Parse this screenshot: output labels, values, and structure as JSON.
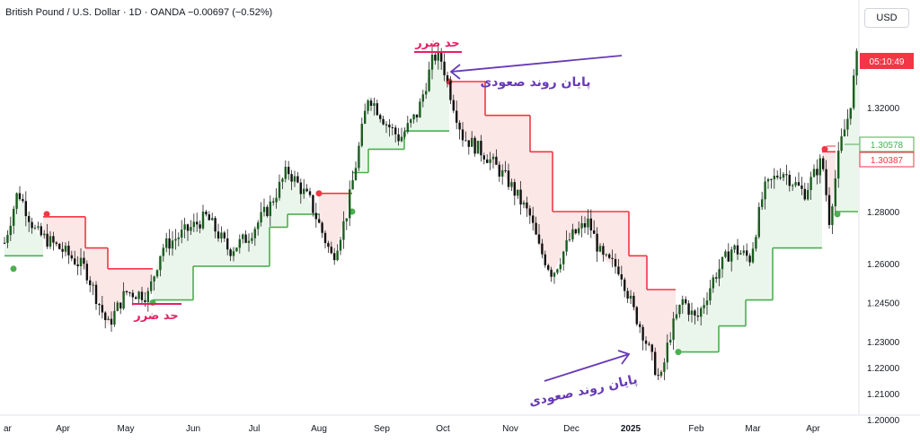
{
  "header": {
    "symbol": "British Pound / U.S. Dollar · 1D · OANDA",
    "change": "−0.00697 (−0.52%)"
  },
  "currency": "USD",
  "chart_data": {
    "type": "candlestick",
    "y_axis": {
      "ticks": [
        "1.32000",
        "1.28000",
        "1.26000",
        "1.24500",
        "1.23000",
        "1.22000",
        "1.21000",
        "1.20000"
      ],
      "tick_values": [
        1.32,
        1.28,
        1.26,
        1.245,
        1.23,
        1.22,
        1.21,
        1.2
      ],
      "position": "right"
    },
    "x_axis": {
      "ticks": [
        "ar",
        "Apr",
        "May",
        "Jun",
        "Jul",
        "Aug",
        "Sep",
        "Oct",
        "Nov",
        "Dec",
        "2025",
        "Feb",
        "Mar",
        "Apr"
      ]
    },
    "price_labels": [
      {
        "text": "05:10:49",
        "value": 1.343,
        "color": "#f23645"
      },
      {
        "text": "1.30578",
        "value": 1.30578,
        "color": "#4caf50"
      },
      {
        "text": "1.30387",
        "value": 1.30387,
        "color": "#f23645"
      }
    ],
    "annotations": [
      {
        "text": "حد ضرر",
        "color": "#e91e63"
      },
      {
        "text": "حد ضرر",
        "color": "#e91e63"
      },
      {
        "text": "پایان روند صعودی",
        "color": "#673ab7"
      },
      {
        "text": "پایان روند صعودی",
        "color": "#673ab7"
      }
    ],
    "colors": {
      "up": "#26a69a",
      "down": "#ef5350",
      "supertrend_up": "#4caf50",
      "supertrend_down": "#f23645",
      "fill_up": "#e8f5e9",
      "fill_down": "#fce4e4"
    }
  }
}
